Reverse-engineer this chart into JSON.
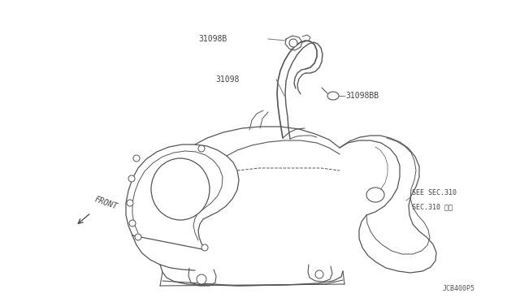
{
  "bg_color": "#ffffff",
  "line_color": "#555555",
  "text_color": "#555555",
  "dark_text": "#444444",
  "label_31098B": "31098B",
  "label_31098": "31098",
  "label_31098BB": "31098BB",
  "label_see_sec": "SEE SEC.310",
  "label_sec_jp": "SEC.310 参照",
  "label_front": "FRONT",
  "label_dwg": "JCB400P5",
  "fs_main": 7.0,
  "fs_small": 6.0
}
